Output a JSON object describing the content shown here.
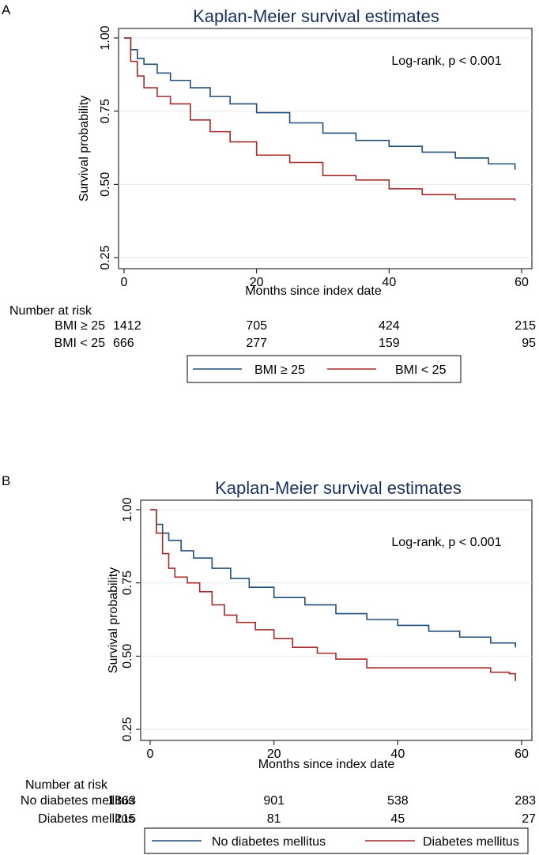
{
  "chart_data": [
    {
      "panel_label": "A",
      "type": "line",
      "title": "Kaplan-Meier survival estimates",
      "xlabel": "Months since index date",
      "ylabel": "Survival probability",
      "xlim": [
        0,
        60
      ],
      "ylim": [
        0.25,
        1.0
      ],
      "xticks": [
        "0",
        "20",
        "40",
        "60"
      ],
      "yticks": [
        "0.25",
        "0.50",
        "0.75",
        "1.00"
      ],
      "grid": true,
      "annotation": "Log-rank, p < 0.001",
      "colors": {
        "series1": "#1f4e79",
        "series2": "#a52a2a"
      },
      "series": [
        {
          "name": "BMI ≥ 25",
          "x": [
            0,
            1,
            2,
            3,
            5,
            7,
            10,
            13,
            16,
            20,
            25,
            30,
            35,
            40,
            45,
            50,
            55,
            59
          ],
          "y": [
            1.0,
            0.96,
            0.93,
            0.91,
            0.88,
            0.855,
            0.83,
            0.8,
            0.775,
            0.745,
            0.71,
            0.675,
            0.65,
            0.63,
            0.61,
            0.59,
            0.57,
            0.55
          ]
        },
        {
          "name": "BMI < 25",
          "x": [
            0,
            1,
            2,
            3,
            5,
            7,
            10,
            13,
            16,
            20,
            25,
            30,
            35,
            40,
            45,
            50,
            55,
            59
          ],
          "y": [
            1.0,
            0.92,
            0.87,
            0.83,
            0.8,
            0.775,
            0.72,
            0.68,
            0.645,
            0.6,
            0.575,
            0.53,
            0.515,
            0.485,
            0.465,
            0.45,
            0.45,
            0.445
          ]
        }
      ],
      "risk_table": {
        "heading": "Number at risk",
        "rows": [
          {
            "label": "BMI ≥ 25",
            "values": [
              "1412",
              "705",
              "424",
              "215"
            ]
          },
          {
            "label": "BMI < 25",
            "values": [
              "666",
              "277",
              "159",
              "95"
            ]
          }
        ]
      },
      "legend": [
        "BMI ≥ 25",
        "BMI < 25"
      ]
    },
    {
      "panel_label": "B",
      "type": "line",
      "title": "Kaplan-Meier survival estimates",
      "xlabel": "Months since index date",
      "ylabel": "Survival probability",
      "xlim": [
        0,
        60
      ],
      "ylim": [
        0.25,
        1.0
      ],
      "xticks": [
        "0",
        "20",
        "40",
        "60"
      ],
      "yticks": [
        "0.25",
        "0.50",
        "0.75",
        "1.00"
      ],
      "grid": true,
      "annotation": "Log-rank, p < 0.001",
      "colors": {
        "series1": "#1f4e79",
        "series2": "#a52a2a"
      },
      "series": [
        {
          "name": "No diabetes mellitus",
          "x": [
            0,
            1,
            2,
            3,
            5,
            7,
            10,
            13,
            16,
            20,
            25,
            30,
            35,
            40,
            45,
            50,
            55,
            59
          ],
          "y": [
            1.0,
            0.95,
            0.92,
            0.895,
            0.86,
            0.835,
            0.8,
            0.765,
            0.735,
            0.7,
            0.675,
            0.645,
            0.625,
            0.605,
            0.585,
            0.565,
            0.545,
            0.53
          ]
        },
        {
          "name": "Diabetes mellitus",
          "x": [
            0,
            1,
            2,
            3,
            4,
            6,
            8,
            10,
            12,
            14,
            17,
            20,
            23,
            27,
            30,
            35,
            40,
            45,
            50,
            55,
            58,
            59
          ],
          "y": [
            1.0,
            0.92,
            0.85,
            0.8,
            0.77,
            0.75,
            0.72,
            0.675,
            0.64,
            0.615,
            0.59,
            0.56,
            0.53,
            0.51,
            0.49,
            0.46,
            0.46,
            0.46,
            0.46,
            0.445,
            0.44,
            0.415
          ]
        }
      ],
      "risk_table": {
        "heading": "Number at risk",
        "rows": [
          {
            "label": "No diabetes mellitus",
            "values": [
              "1863",
              "901",
              "538",
              "283"
            ]
          },
          {
            "label": "Diabetes mellitus",
            "values": [
              "215",
              "81",
              "45",
              "27"
            ]
          }
        ]
      },
      "legend": [
        "No diabetes mellitus",
        "Diabetes mellitus"
      ]
    }
  ]
}
